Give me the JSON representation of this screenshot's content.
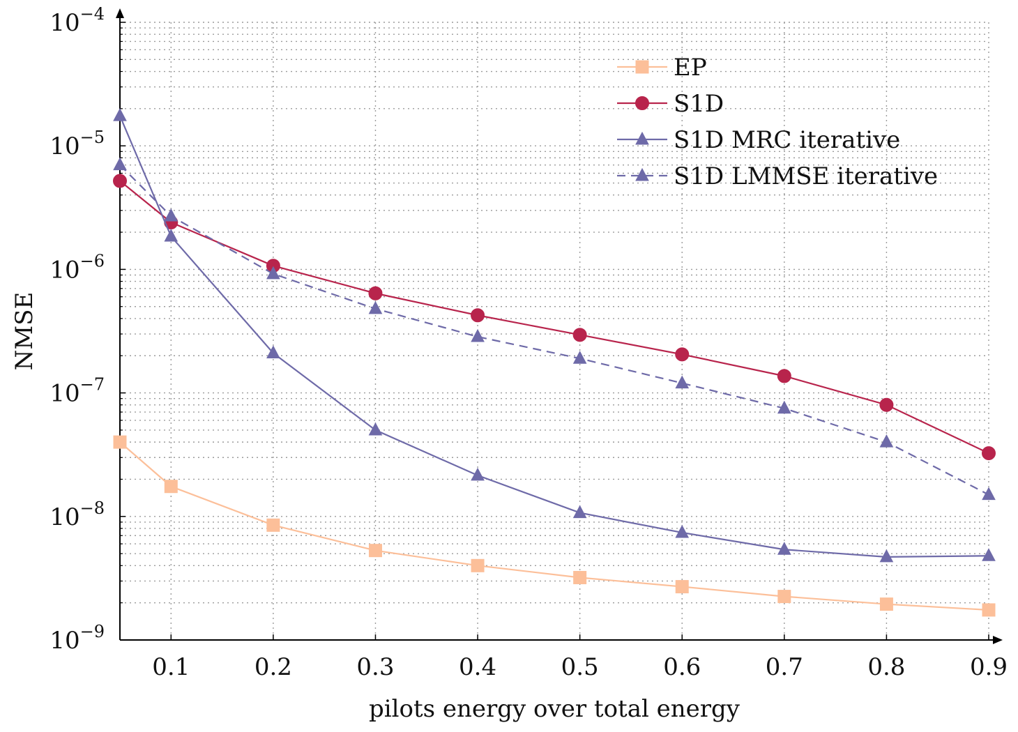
{
  "chart_data": {
    "type": "line",
    "title": "",
    "xlabel": "pilots energy over total energy",
    "ylabel": "NMSE",
    "yscale": "log",
    "xlim": [
      0.05,
      0.9
    ],
    "ylim": [
      1e-09,
      0.0001
    ],
    "grid": true,
    "legend_position": "top-right",
    "x": [
      0.05,
      0.1,
      0.2,
      0.3,
      0.4,
      0.5,
      0.6,
      0.7,
      0.8,
      0.9
    ],
    "xticks": [
      {
        "value": 0.1,
        "label": "0.1"
      },
      {
        "value": 0.2,
        "label": "0.2"
      },
      {
        "value": 0.3,
        "label": "0.3"
      },
      {
        "value": 0.4,
        "label": "0.4"
      },
      {
        "value": 0.5,
        "label": "0.5"
      },
      {
        "value": 0.6,
        "label": "0.6"
      },
      {
        "value": 0.7,
        "label": "0.7"
      },
      {
        "value": 0.8,
        "label": "0.8"
      },
      {
        "value": 0.9,
        "label": "0.9"
      }
    ],
    "yticks": [
      {
        "value": 1e-09,
        "base": "10",
        "exp": "−9"
      },
      {
        "value": 1e-08,
        "base": "10",
        "exp": "−8"
      },
      {
        "value": 1e-07,
        "base": "10",
        "exp": "−7"
      },
      {
        "value": 1e-06,
        "base": "10",
        "exp": "−6"
      },
      {
        "value": 1e-05,
        "base": "10",
        "exp": "−5"
      },
      {
        "value": 0.0001,
        "base": "10",
        "exp": "−4"
      }
    ],
    "series": [
      {
        "name": "EP",
        "color": "#fcbf99",
        "marker": "square",
        "dashed": false,
        "values": [
          4e-08,
          1.75e-08,
          8.5e-09,
          5.3e-09,
          4e-09,
          3.2e-09,
          2.7e-09,
          2.25e-09,
          1.95e-09,
          1.75e-09
        ]
      },
      {
        "name": "S1D",
        "color": "#b8244c",
        "marker": "circle",
        "dashed": false,
        "values": [
          5.2e-06,
          2.4e-06,
          1.07e-06,
          6.4e-07,
          4.25e-07,
          2.95e-07,
          2.05e-07,
          1.37e-07,
          8e-08,
          3.25e-08
        ]
      },
      {
        "name": "S1D MRC iterative",
        "color": "#6e6aa8",
        "marker": "triangle",
        "dashed": false,
        "values": [
          1.75e-05,
          1.85e-06,
          2.1e-07,
          5e-08,
          2.15e-08,
          1.07e-08,
          7.4e-09,
          5.4e-09,
          4.7e-09,
          4.8e-09
        ]
      },
      {
        "name": "S1D LMMSE iterative",
        "color": "#6e6aa8",
        "marker": "triangle",
        "dashed": true,
        "values": [
          7e-06,
          2.7e-06,
          9.2e-07,
          4.8e-07,
          2.85e-07,
          1.9e-07,
          1.2e-07,
          7.5e-08,
          4e-08,
          1.5e-08
        ]
      }
    ]
  }
}
